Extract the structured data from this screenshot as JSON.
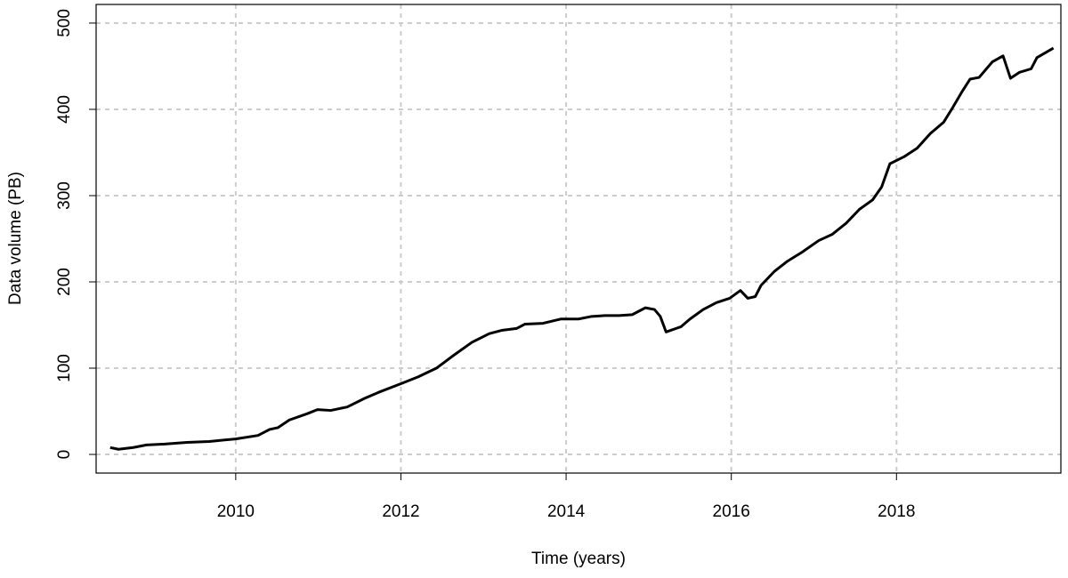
{
  "chart_data": {
    "type": "line",
    "xlabel": "Time (years)",
    "ylabel": "Data volume (PB)",
    "x": [
      2008.48,
      2008.58,
      2008.76,
      2008.92,
      2009.14,
      2009.41,
      2009.68,
      2010.0,
      2010.27,
      2010.41,
      2010.51,
      2010.65,
      2010.86,
      2010.99,
      2011.15,
      2011.35,
      2011.56,
      2011.73,
      2012.0,
      2012.21,
      2012.43,
      2012.64,
      2012.86,
      2013.07,
      2013.23,
      2013.4,
      2013.5,
      2013.72,
      2013.94,
      2014.15,
      2014.31,
      2014.47,
      2014.64,
      2014.8,
      2014.96,
      2015.07,
      2015.14,
      2015.21,
      2015.39,
      2015.5,
      2015.66,
      2015.82,
      2015.98,
      2016.11,
      2016.2,
      2016.29,
      2016.36,
      2016.52,
      2016.68,
      2016.85,
      2017.06,
      2017.22,
      2017.39,
      2017.55,
      2017.71,
      2017.82,
      2017.92,
      2018.09,
      2018.25,
      2018.41,
      2018.57,
      2018.68,
      2018.79,
      2018.89,
      2019.0,
      2019.16,
      2019.29,
      2019.38,
      2019.49,
      2019.63,
      2019.7,
      2019.9
    ],
    "series": [
      {
        "name": "Data volume",
        "color": "#000000",
        "values": [
          8,
          6,
          8,
          11,
          12,
          14,
          15,
          18,
          22,
          29,
          31,
          40,
          47,
          52,
          51,
          55,
          65,
          72,
          82,
          90,
          100,
          115,
          130,
          140,
          144,
          146,
          151,
          152,
          157,
          157,
          160,
          161,
          161,
          162,
          170,
          168,
          160,
          142,
          148,
          157,
          168,
          176,
          181,
          190,
          181,
          183,
          196,
          212,
          224,
          234,
          248,
          255,
          268,
          284,
          295,
          310,
          337,
          345,
          355,
          372,
          385,
          402,
          420,
          435,
          437,
          455,
          462,
          436,
          443,
          447,
          460,
          471
        ]
      }
    ],
    "xlim": [
      2008.31,
      2019.99
    ],
    "xticks": [
      2010,
      2012,
      2014,
      2016,
      2018
    ],
    "ylim": [
      -21.6,
      521.6
    ],
    "yticks": [
      0,
      100,
      200,
      300,
      400,
      500
    ],
    "grid": true
  }
}
